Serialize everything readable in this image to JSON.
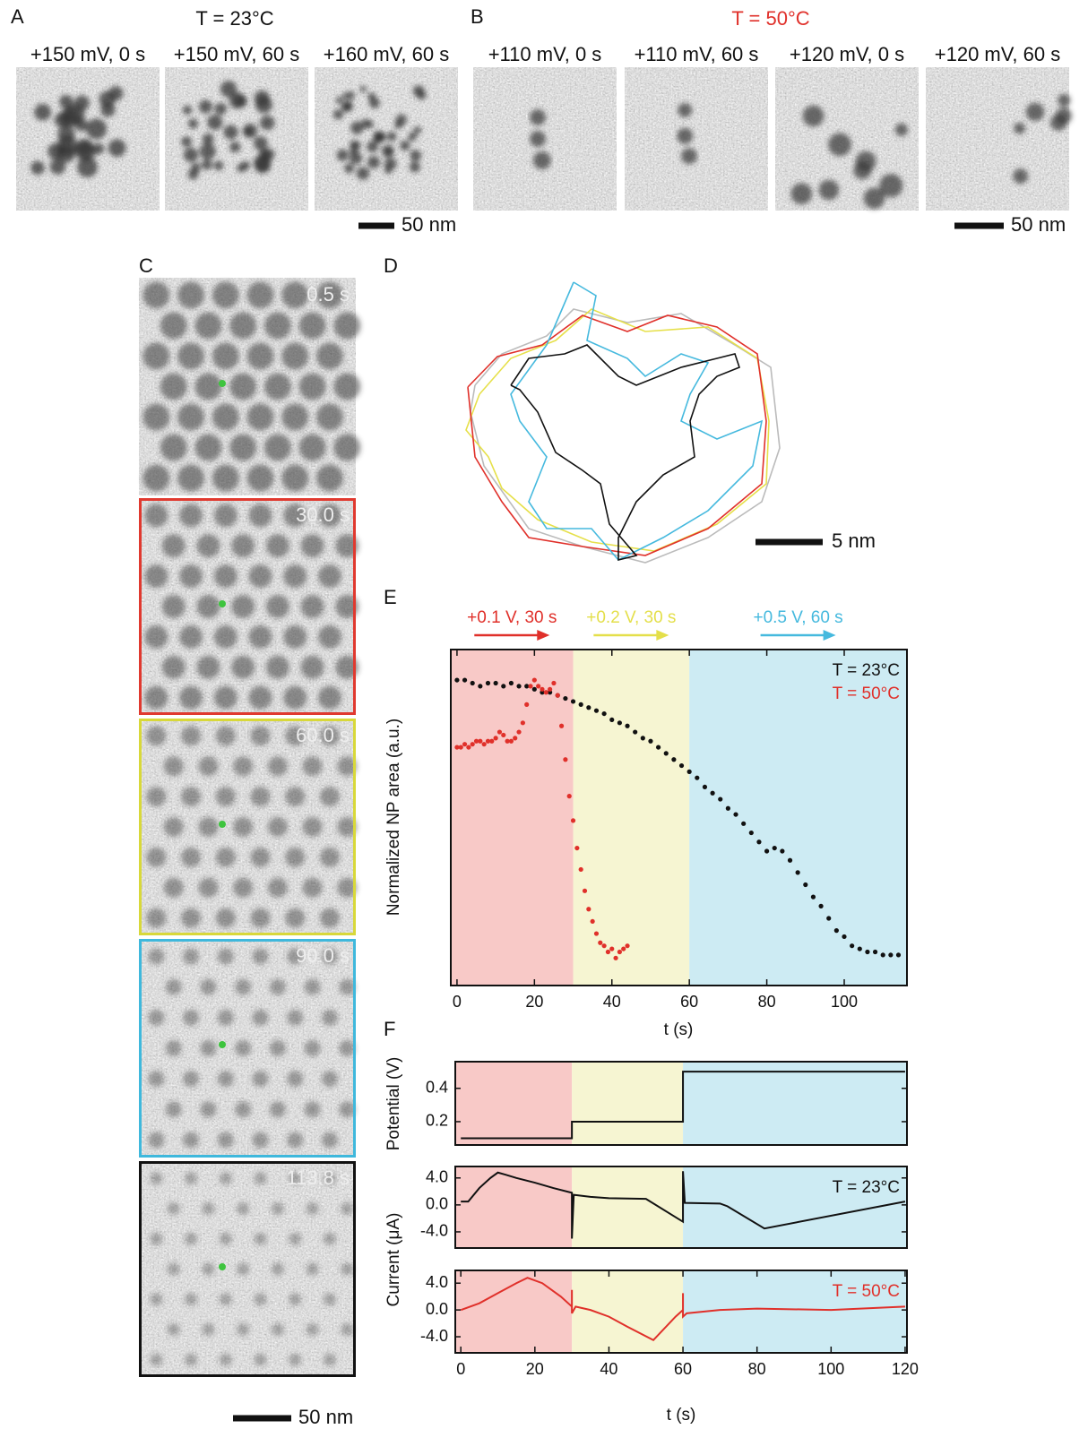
{
  "panel_labels": {
    "a": "A",
    "b": "B",
    "c": "C",
    "d": "D",
    "e": "E",
    "f": "F"
  },
  "panel_a": {
    "title": "T = 23°C",
    "images": [
      "+150 mV, 0 s",
      "+150 mV, 60 s",
      "+160 mV, 60 s"
    ],
    "scale_bar": "50 nm"
  },
  "panel_b": {
    "title": "T = 50°C",
    "images": [
      "+110 mV, 0 s",
      "+110 mV, 60 s",
      "+120 mV, 0 s",
      "+120 mV, 60 s"
    ],
    "scale_bar": "50 nm"
  },
  "panel_c": {
    "times": [
      "0.5 s",
      "30.0 s",
      "60.0 s",
      "90.0 s",
      "113.8 s"
    ],
    "scale_bar": "50 nm"
  },
  "panel_d": {
    "scale_bar": "5 nm"
  },
  "chart_data": [
    {
      "type": "scatter",
      "xlabel": "t (s)",
      "ylabel": "Normalized NP area (a.u.)",
      "xlim": [
        -1.6,
        116.2
      ],
      "ylim": [
        0,
        1.1
      ],
      "xticks": [
        0,
        20,
        40,
        60,
        80,
        100
      ],
      "region_bounds": [
        30,
        60
      ],
      "region_colors": [
        "#f8c9c7",
        "#f6f5d2",
        "#cdebf3"
      ],
      "annotations": [
        {
          "text": "+0.1 V, 30 s",
          "color": "#e0302a"
        },
        {
          "text": "+0.2 V, 30 s",
          "color": "#e4df4a"
        },
        {
          "text": "+0.5 V, 60 s",
          "color": "#45b9de"
        }
      ],
      "series": [
        {
          "name": "T = 23°C",
          "color": "#111111",
          "x": [
            0,
            2,
            4,
            6,
            8,
            10,
            12,
            14,
            16,
            18,
            20,
            22,
            24,
            26,
            28,
            30,
            32,
            34,
            36,
            38,
            40,
            42,
            44,
            46,
            48,
            50,
            52,
            54,
            56,
            58,
            60,
            62,
            64,
            66,
            68,
            70,
            72,
            74,
            76,
            78,
            80,
            82,
            84,
            86,
            88,
            90,
            92,
            94,
            96,
            98,
            100,
            102,
            104,
            106,
            108,
            110,
            112,
            114
          ],
          "values": [
            1.0,
            1.0,
            0.99,
            0.98,
            0.99,
            0.99,
            0.98,
            0.99,
            0.98,
            0.98,
            0.97,
            0.96,
            0.96,
            0.95,
            0.94,
            0.93,
            0.92,
            0.91,
            0.9,
            0.89,
            0.87,
            0.86,
            0.85,
            0.83,
            0.81,
            0.8,
            0.78,
            0.76,
            0.74,
            0.72,
            0.7,
            0.68,
            0.65,
            0.63,
            0.61,
            0.58,
            0.56,
            0.53,
            0.5,
            0.47,
            0.44,
            0.45,
            0.44,
            0.41,
            0.37,
            0.33,
            0.29,
            0.26,
            0.22,
            0.18,
            0.16,
            0.13,
            0.12,
            0.11,
            0.11,
            0.1,
            0.1,
            0.1
          ]
        },
        {
          "name": "T = 50°C",
          "color": "#e0302a",
          "x": [
            0,
            1,
            2,
            3,
            4,
            5,
            6,
            7,
            8,
            9,
            10,
            11,
            12,
            13,
            14,
            15,
            16,
            17,
            18,
            19,
            20,
            21,
            22,
            23,
            24,
            25,
            26,
            27,
            28,
            29,
            30,
            31,
            32,
            33,
            34,
            35,
            36,
            37,
            38,
            39,
            40,
            41,
            42,
            43,
            44
          ],
          "values": [
            0.78,
            0.78,
            0.79,
            0.78,
            0.79,
            0.8,
            0.8,
            0.79,
            0.8,
            0.8,
            0.81,
            0.83,
            0.82,
            0.8,
            0.8,
            0.81,
            0.83,
            0.86,
            0.92,
            0.98,
            1.0,
            0.98,
            0.97,
            0.96,
            0.97,
            0.99,
            0.95,
            0.85,
            0.74,
            0.62,
            0.54,
            0.45,
            0.38,
            0.31,
            0.25,
            0.21,
            0.17,
            0.14,
            0.13,
            0.11,
            0.12,
            0.09,
            0.11,
            0.12,
            0.13
          ]
        }
      ]
    },
    {
      "type": "line",
      "ylabel": "Potential (V)",
      "xlim": [
        -1.5,
        120.5
      ],
      "ylim": [
        0.06,
        0.56
      ],
      "yticks": [
        0.2,
        0.4
      ],
      "region_bounds": [
        30,
        60
      ],
      "region_colors": [
        "#f8c9c7",
        "#f6f5d2",
        "#cdebf3"
      ],
      "series": [
        {
          "color": "#111111",
          "x": [
            0,
            30,
            30,
            60,
            60,
            120
          ],
          "values": [
            0.1,
            0.1,
            0.2,
            0.2,
            0.5,
            0.5
          ]
        }
      ]
    },
    {
      "type": "line",
      "ylabel": "Current (μA)",
      "xlim": [
        -1.5,
        120.5
      ],
      "ylim": [
        -6.4,
        5.7
      ],
      "yticks": [
        {
          "value": -4,
          "label": "-4.0"
        },
        {
          "value": 0,
          "label": "0.0"
        },
        {
          "value": 4,
          "label": "4.0"
        }
      ],
      "region_bounds": [
        30,
        60
      ],
      "region_colors": [
        "#f8c9c7",
        "#f6f5d2",
        "#cdebf3"
      ],
      "series": [
        {
          "name": "T = 23°C",
          "color": "#111111",
          "x": [
            0,
            2,
            5,
            8,
            10,
            12,
            15,
            20,
            25,
            30,
            30,
            30.5,
            35,
            40,
            50,
            60,
            60,
            60.5,
            70,
            72,
            82,
            120
          ],
          "values": [
            0.5,
            0.5,
            2.5,
            4,
            4.8,
            4.5,
            4,
            3.3,
            2.5,
            1.8,
            -5,
            1.5,
            1.2,
            1,
            0.9,
            -2.5,
            5,
            0.3,
            0.2,
            -0.2,
            -3.5,
            0.5
          ]
        }
      ]
    },
    {
      "type": "line",
      "xlabel": "t (s)",
      "xlim": [
        -1.5,
        120.5
      ],
      "ylim": [
        -6.4,
        5.9
      ],
      "xticks": [
        0,
        20,
        40,
        60,
        80,
        100,
        120
      ],
      "yticks": [
        {
          "value": -4,
          "label": "-4.0"
        },
        {
          "value": 0,
          "label": "0.0"
        },
        {
          "value": 4,
          "label": "4.0"
        }
      ],
      "region_bounds": [
        30,
        60
      ],
      "region_colors": [
        "#f8c9c7",
        "#f6f5d2",
        "#cdebf3"
      ],
      "series": [
        {
          "name": "T = 50°C",
          "color": "#e0302a",
          "x": [
            0,
            5,
            10,
            15,
            18,
            22,
            27,
            30,
            30,
            30,
            31,
            35,
            40,
            45,
            52,
            58,
            60,
            60,
            60,
            61,
            70,
            80,
            100,
            120
          ],
          "values": [
            0,
            1,
            2.5,
            4,
            4.8,
            4,
            2,
            0.5,
            3,
            -0.5,
            0.5,
            0,
            -1,
            -2.5,
            -4.5,
            -1,
            0,
            2.5,
            -1,
            -0.5,
            0,
            0.2,
            0,
            0.5
          ]
        }
      ]
    }
  ]
}
